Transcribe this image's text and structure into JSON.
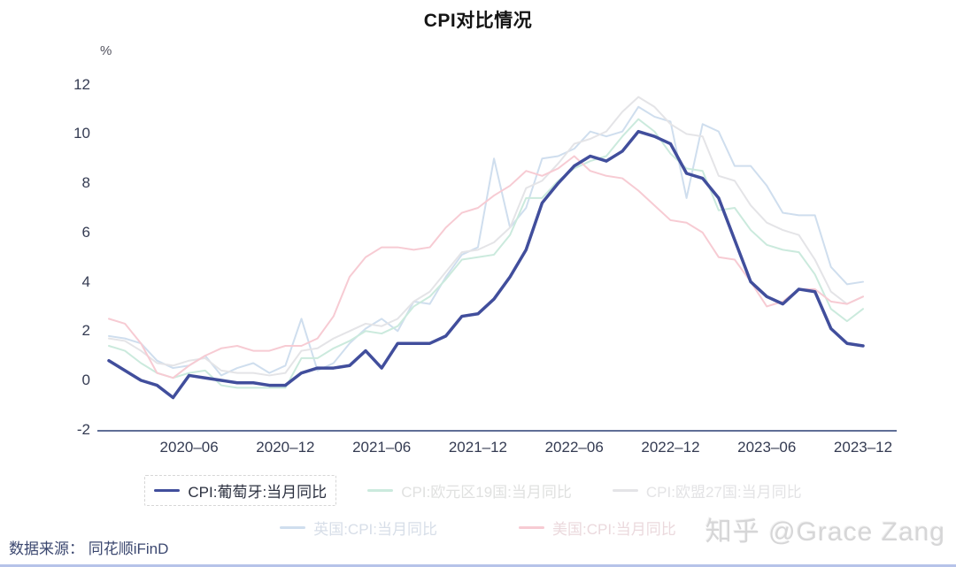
{
  "title": "CPI对比情况",
  "y_axis": {
    "unit": "%"
  },
  "footer": {
    "source": "数据来源： 同花顺iFinD"
  },
  "watermark": {
    "text": "知乎 @Grace Zang"
  },
  "chart_data": {
    "type": "line",
    "title": "CPI对比情况",
    "ylabel": "%",
    "ylim": [
      -2,
      12
    ],
    "grid": false,
    "x_frequency": "monthly",
    "x_start": "2020-01",
    "x_end": "2023-12",
    "y_ticks": [
      12,
      10,
      8,
      6,
      4,
      2,
      0,
      -2
    ],
    "x_tick_labels": [
      "2020–06",
      "2020–12",
      "2021–06",
      "2021–12",
      "2022–06",
      "2022–12",
      "2023–06",
      "2023–12"
    ],
    "x_tick_month_indices": [
      5,
      11,
      17,
      23,
      29,
      35,
      41,
      47
    ],
    "legend_rows": [
      [
        0,
        1,
        2
      ],
      [
        3,
        4
      ]
    ],
    "legend_position": "bottom",
    "series": [
      {
        "name": "CPI:葡萄牙:当月同比",
        "color": "#414e9c",
        "width": 3.5,
        "selected": true,
        "legend_text_color": "#2b303f",
        "values": [
          0.8,
          0.4,
          0.0,
          -0.2,
          -0.7,
          0.2,
          0.1,
          0.0,
          -0.1,
          -0.1,
          -0.2,
          -0.2,
          0.3,
          0.5,
          0.5,
          0.6,
          1.2,
          0.5,
          1.5,
          1.5,
          1.5,
          1.8,
          2.6,
          2.7,
          3.3,
          4.2,
          5.3,
          7.2,
          8.0,
          8.7,
          9.1,
          8.9,
          9.3,
          10.1,
          9.9,
          9.6,
          8.4,
          8.2,
          7.4,
          5.7,
          4.0,
          3.4,
          3.1,
          3.7,
          3.6,
          2.1,
          1.5,
          1.4
        ]
      },
      {
        "name": "CPI:欧元区19国:当月同比",
        "color": "#cbeadd",
        "width": 2,
        "selected": false,
        "legend_text_color": "#e0e1e0",
        "values": [
          1.4,
          1.2,
          0.7,
          0.3,
          0.1,
          0.3,
          0.4,
          -0.2,
          -0.3,
          -0.3,
          -0.3,
          -0.3,
          0.9,
          0.9,
          1.3,
          1.6,
          2.0,
          1.9,
          2.2,
          3.0,
          3.4,
          4.1,
          4.9,
          5.0,
          5.1,
          5.9,
          7.4,
          7.4,
          8.1,
          8.6,
          8.9,
          9.1,
          9.9,
          10.6,
          10.1,
          9.2,
          8.6,
          8.5,
          6.9,
          7.0,
          6.1,
          5.5,
          5.3,
          5.2,
          4.3,
          2.9,
          2.4,
          2.9
        ]
      },
      {
        "name": "CPI:欧盟27国:当月同比",
        "color": "#e4e4e7",
        "width": 2,
        "selected": false,
        "legend_text_color": "#e3e3e5",
        "values": [
          1.7,
          1.6,
          1.2,
          0.7,
          0.6,
          0.8,
          0.9,
          0.4,
          0.3,
          0.3,
          0.2,
          0.3,
          1.2,
          1.3,
          1.7,
          2.0,
          2.3,
          2.2,
          2.5,
          3.2,
          3.6,
          4.4,
          5.2,
          5.3,
          5.6,
          6.2,
          7.8,
          8.1,
          8.8,
          9.6,
          9.8,
          10.1,
          10.9,
          11.5,
          11.1,
          10.4,
          10.0,
          9.9,
          8.3,
          8.1,
          7.1,
          6.4,
          6.1,
          5.9,
          4.9,
          3.6,
          3.1,
          3.4
        ]
      },
      {
        "name": "英国:CPI:当月同比",
        "color": "#cfdeee",
        "width": 2,
        "selected": false,
        "legend_text_color": "#d7dee8",
        "values": [
          1.8,
          1.7,
          1.5,
          0.8,
          0.5,
          0.6,
          1.0,
          0.2,
          0.5,
          0.7,
          0.3,
          0.6,
          2.5,
          0.4,
          0.7,
          1.5,
          2.1,
          2.5,
          2.0,
          3.2,
          3.1,
          4.2,
          5.1,
          5.4,
          9.0,
          6.2,
          7.0,
          9.0,
          9.1,
          9.4,
          10.1,
          9.9,
          10.1,
          11.1,
          10.7,
          10.5,
          7.4,
          10.4,
          10.1,
          8.7,
          8.7,
          7.9,
          6.8,
          6.7,
          6.7,
          4.6,
          3.9,
          4.0
        ]
      },
      {
        "name": "美国:CPI:当月同比",
        "color": "#f7cbd3",
        "width": 2,
        "selected": false,
        "legend_text_color": "#ebd9dd",
        "values": [
          2.5,
          2.3,
          1.5,
          0.3,
          0.1,
          0.6,
          1.0,
          1.3,
          1.4,
          1.2,
          1.2,
          1.4,
          1.4,
          1.7,
          2.6,
          4.2,
          5.0,
          5.4,
          5.4,
          5.3,
          5.4,
          6.2,
          6.8,
          7.0,
          7.5,
          7.9,
          8.5,
          8.3,
          8.6,
          9.1,
          8.5,
          8.3,
          8.2,
          7.7,
          7.1,
          6.5,
          6.4,
          6.0,
          5.0,
          4.9,
          4.0,
          3.0,
          3.2,
          3.7,
          3.7,
          3.2,
          3.1,
          3.4
        ]
      }
    ]
  }
}
